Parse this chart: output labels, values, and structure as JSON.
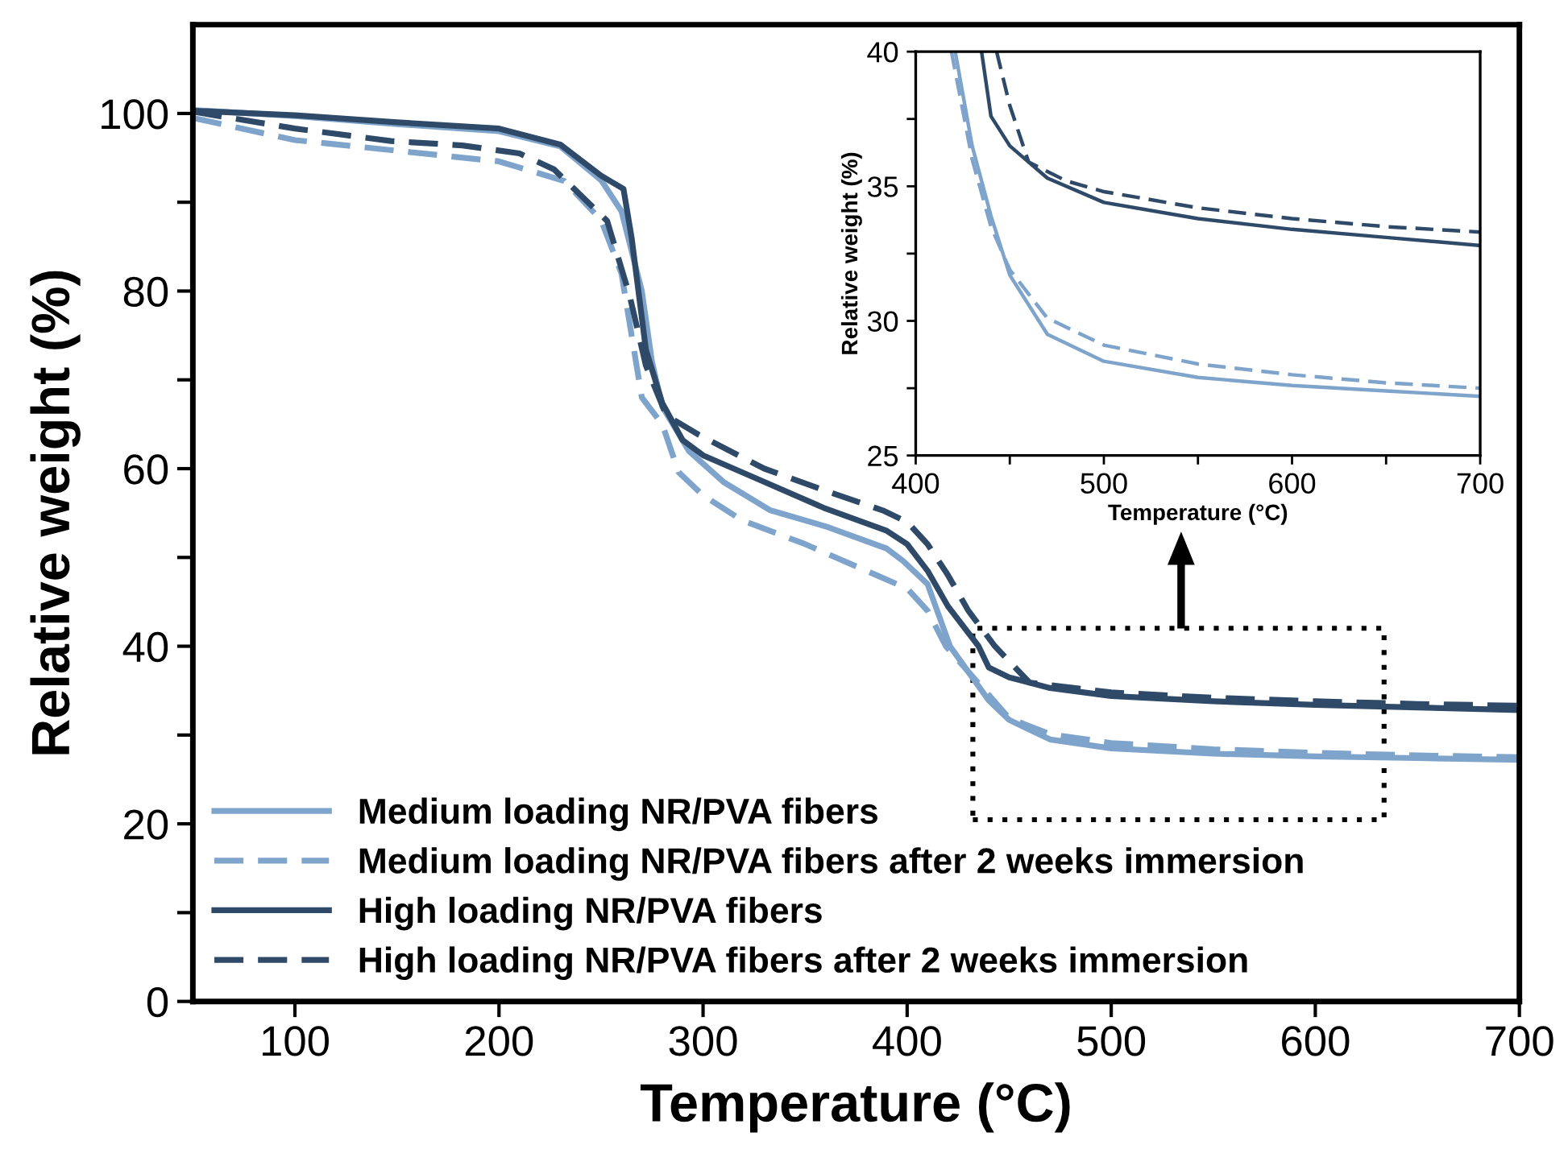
{
  "chart_data": [
    {
      "type": "line",
      "xlabel": "Temperature (°C)",
      "ylabel": "Relative weight (%)",
      "xlim": [
        50,
        700
      ],
      "xticks": [
        100,
        200,
        300,
        400,
        500,
        600,
        700
      ],
      "ylim": [
        0,
        110
      ],
      "yticks": [
        0,
        {
          "value": 10,
          "label": null
        },
        20,
        {
          "value": 30,
          "label": null
        },
        40,
        {
          "value": 50,
          "label": null
        },
        60,
        {
          "value": 70,
          "label": null
        },
        80,
        {
          "value": 90,
          "label": null
        },
        100
      ],
      "grid": false,
      "legend": "bottom left",
      "series": [
        {
          "name": "Medium loading NR/PVA fibers",
          "color": "#7fa4cb",
          "line_style": "solid",
          "x": [
            50,
            100,
            150,
            200,
            230,
            250,
            260,
            270,
            275,
            280,
            293,
            310,
            333,
            360,
            390,
            398,
            410,
            421,
            440,
            450,
            470,
            500,
            550,
            600,
            650,
            700
          ],
          "values": [
            100.4,
            99.7,
            98.8,
            98,
            96.3,
            92.5,
            89,
            80,
            72,
            67,
            62,
            58.5,
            55.3,
            53.5,
            51,
            49.6,
            47,
            40,
            33.9,
            31.7,
            29.5,
            28.5,
            27.9,
            27.6,
            27.4,
            27.2
          ]
        },
        {
          "name": "Medium loading NR/PVA fibers after 2 weeks immersion",
          "color": "#7fa4cb",
          "line_style": "dashed",
          "x": [
            50,
            100,
            150,
            200,
            232,
            250,
            260,
            265,
            270,
            280,
            288,
            300,
            319,
            350,
            385,
            400,
            410,
            419,
            450,
            470,
            500,
            550,
            600,
            650,
            700
          ],
          "values": [
            99.5,
            97,
            95.8,
            94.6,
            92.4,
            88,
            82,
            75,
            68,
            65,
            59.6,
            57,
            54.2,
            51.5,
            48,
            46.5,
            44,
            40,
            31.9,
            30.1,
            29.1,
            28.4,
            28,
            27.7,
            27.5
          ]
        },
        {
          "name": "High loading NR/PVA fibers",
          "color": "#2e4a68",
          "line_style": "solid",
          "x": [
            50,
            100,
            150,
            200,
            230,
            250,
            261,
            265,
            272,
            280,
            290,
            300,
            330,
            359,
            390,
            400,
            410,
            420,
            430,
            435,
            440,
            450,
            470,
            500,
            550,
            600,
            650,
            700
          ],
          "values": [
            100.3,
            99.8,
            99,
            98.3,
            96.5,
            93,
            91.5,
            86,
            73.4,
            67.4,
            63.2,
            61.5,
            58.5,
            55.6,
            53,
            51.5,
            48.5,
            44.5,
            41.5,
            40,
            37.6,
            36.5,
            35.3,
            34.4,
            33.8,
            33.4,
            33.1,
            32.8
          ]
        },
        {
          "name": "High loading NR/PVA fibers after 2 weeks immersion",
          "color": "#2e4a68",
          "line_style": "dashed",
          "x": [
            50,
            100,
            147,
            182,
            210,
            227,
            253,
            264,
            272,
            282,
            298,
            330,
            360,
            388,
            400,
            410,
            420,
            430,
            443,
            460,
            500,
            550,
            600,
            650,
            700
          ],
          "values": [
            100.2,
            98.3,
            96.9,
            96.4,
            95.5,
            93.7,
            87.9,
            79.5,
            71.6,
            66,
            63.8,
            60,
            57.5,
            55.3,
            54,
            51.5,
            48,
            44,
            40,
            35.9,
            34.8,
            34.2,
            33.8,
            33.5,
            33.3
          ]
        }
      ]
    },
    {
      "type": "line",
      "xlabel": "Temperature (°C)",
      "ylabel": "Relative weight (%)",
      "xlim": [
        400,
        700
      ],
      "xticks": [
        400,
        {
          "value": 450,
          "label": null
        },
        500,
        {
          "value": 550,
          "label": null
        },
        600,
        {
          "value": 650,
          "label": null
        },
        700
      ],
      "ylim": [
        25,
        40
      ],
      "yticks": [
        25,
        {
          "value": 27.5,
          "label": null
        },
        30,
        {
          "value": 32.5,
          "label": null
        },
        35,
        {
          "value": 37.5,
          "label": null
        },
        40
      ],
      "grid": false,
      "legend": false,
      "series": [
        {
          "color": "#7fa4cb",
          "line_style": "solid",
          "x": [
            421,
            430,
            440,
            450,
            470,
            500,
            550,
            600,
            650,
            700
          ],
          "values": [
            40,
            36.5,
            33.9,
            31.7,
            29.5,
            28.5,
            27.9,
            27.6,
            27.4,
            27.2
          ]
        },
        {
          "color": "#7fa4cb",
          "line_style": "dashed",
          "x": [
            419,
            430,
            440,
            450,
            470,
            500,
            550,
            600,
            650,
            700
          ],
          "values": [
            40,
            36,
            33.5,
            31.9,
            30.1,
            29.1,
            28.4,
            28,
            27.7,
            27.5
          ]
        },
        {
          "color": "#2e4a68",
          "line_style": "solid",
          "x": [
            435,
            440,
            450,
            470,
            500,
            550,
            600,
            650,
            700
          ],
          "values": [
            40,
            37.6,
            36.5,
            35.3,
            34.4,
            33.8,
            33.4,
            33.1,
            32.8
          ]
        },
        {
          "color": "#2e4a68",
          "line_style": "dashed",
          "x": [
            443,
            450,
            460,
            480,
            500,
            550,
            600,
            650,
            700
          ],
          "values": [
            40,
            38,
            35.9,
            35.2,
            34.8,
            34.2,
            33.8,
            33.5,
            33.3
          ]
        }
      ]
    }
  ]
}
